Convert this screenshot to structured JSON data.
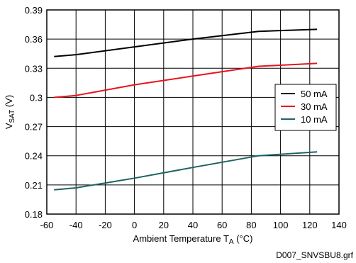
{
  "chart_data": {
    "type": "line",
    "title": "",
    "xlabel": {
      "main": "Ambient Temperature T",
      "sub": "A",
      "unit": " (°C)"
    },
    "ylabel": {
      "main": "V",
      "sub": "SAT",
      "unit": " (V)"
    },
    "xlim": [
      -60,
      140
    ],
    "ylim": [
      0.18,
      0.39
    ],
    "x_ticks": [
      -60,
      -40,
      -20,
      0,
      20,
      40,
      60,
      80,
      100,
      120,
      140
    ],
    "x_tick_labels": [
      "-60",
      "-40",
      "-20",
      "0",
      "20",
      "40",
      "60",
      "80",
      "100",
      "120",
      "140"
    ],
    "y_ticks": [
      0.18,
      0.21,
      0.24,
      0.27,
      0.3,
      0.33,
      0.36,
      0.39
    ],
    "y_tick_labels": [
      "0.18",
      "0.21",
      "0.24",
      "0.27",
      "0.3",
      "0.33",
      "0.36",
      "0.39"
    ],
    "grid": true,
    "legend_position": "right",
    "series": [
      {
        "name": "50 mA",
        "color": "#000000",
        "x": [
          -55,
          -40,
          0,
          40,
          85,
          125
        ],
        "y": [
          0.342,
          0.344,
          0.352,
          0.36,
          0.368,
          0.37
        ]
      },
      {
        "name": "30 mA",
        "color": "#e8141b",
        "x": [
          -55,
          -40,
          0,
          40,
          85,
          125
        ],
        "y": [
          0.3,
          0.302,
          0.313,
          0.322,
          0.332,
          0.335
        ]
      },
      {
        "name": "10 mA",
        "color": "#1f6363",
        "x": [
          -55,
          -40,
          0,
          40,
          85,
          125
        ],
        "y": [
          0.205,
          0.207,
          0.217,
          0.228,
          0.24,
          0.244
        ]
      }
    ]
  },
  "footer": "D007_SNVSBU8.grf"
}
